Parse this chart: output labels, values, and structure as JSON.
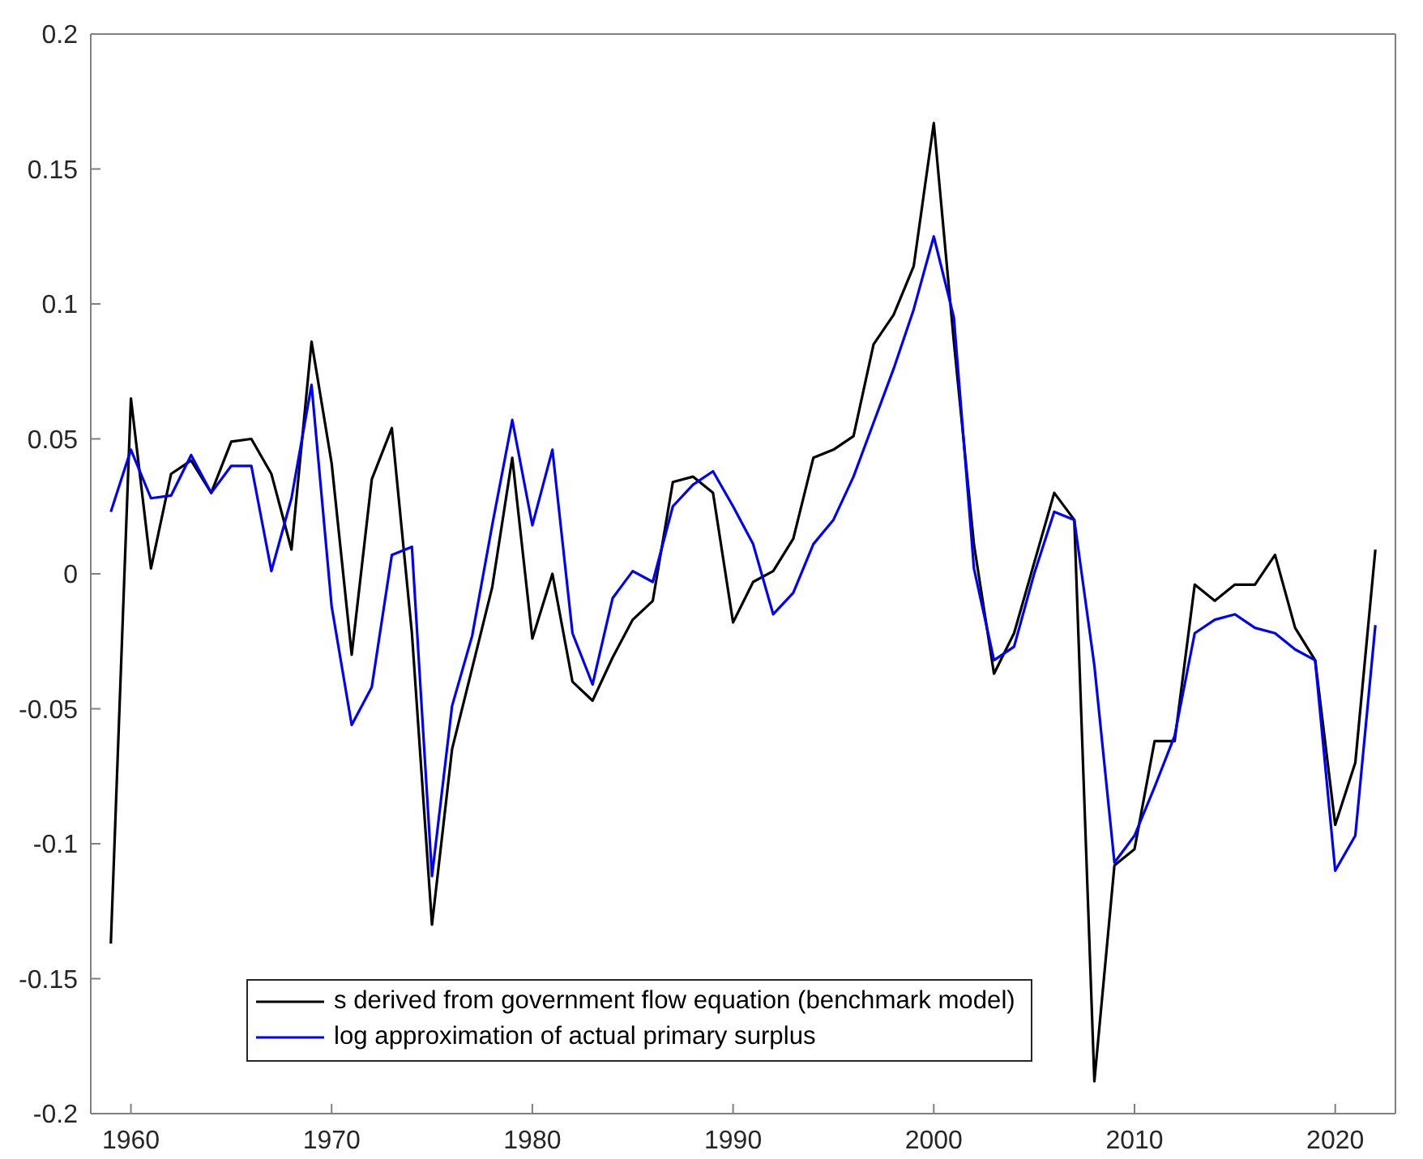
{
  "chart_data": {
    "type": "line",
    "x": [
      1959,
      1960,
      1961,
      1962,
      1963,
      1964,
      1965,
      1966,
      1967,
      1968,
      1969,
      1970,
      1971,
      1972,
      1973,
      1974,
      1975,
      1976,
      1977,
      1978,
      1979,
      1980,
      1981,
      1982,
      1983,
      1984,
      1985,
      1986,
      1987,
      1988,
      1989,
      1990,
      1991,
      1992,
      1993,
      1994,
      1995,
      1996,
      1997,
      1998,
      1999,
      2000,
      2001,
      2002,
      2003,
      2004,
      2005,
      2006,
      2007,
      2008,
      2009,
      2010,
      2011,
      2012,
      2013,
      2014,
      2015,
      2016,
      2017,
      2018,
      2019,
      2020,
      2021,
      2022
    ],
    "series": [
      {
        "name": "s derived from government flow equation (benchmark model)",
        "color": "#000000",
        "values": [
          -0.137,
          0.065,
          0.002,
          0.037,
          0.042,
          0.03,
          0.049,
          0.05,
          0.037,
          0.009,
          0.086,
          0.041,
          -0.03,
          0.035,
          0.054,
          -0.022,
          -0.13,
          -0.065,
          -0.035,
          -0.005,
          0.043,
          -0.024,
          0.0,
          -0.04,
          -0.047,
          -0.031,
          -0.017,
          -0.01,
          0.034,
          0.036,
          0.03,
          -0.018,
          -0.003,
          0.001,
          0.013,
          0.043,
          0.046,
          0.051,
          0.085,
          0.096,
          0.114,
          0.167,
          0.086,
          0.011,
          -0.037,
          -0.022,
          0.004,
          0.03,
          0.02,
          -0.188,
          -0.108,
          -0.102,
          -0.062,
          -0.062,
          -0.004,
          -0.01,
          -0.004,
          -0.004,
          0.007,
          -0.02,
          -0.032,
          -0.093,
          -0.07,
          0.009
        ]
      },
      {
        "name": "log approximation of actual primary surplus",
        "color": "#0000ff",
        "values": [
          0.023,
          0.046,
          0.028,
          0.029,
          0.044,
          0.03,
          0.04,
          0.04,
          0.001,
          0.028,
          0.07,
          -0.012,
          -0.056,
          -0.042,
          0.007,
          0.01,
          -0.112,
          -0.049,
          -0.023,
          0.018,
          0.057,
          0.018,
          0.046,
          -0.022,
          -0.041,
          -0.009,
          0.001,
          -0.003,
          0.025,
          0.033,
          0.038,
          0.025,
          0.011,
          -0.015,
          -0.007,
          0.011,
          0.02,
          0.036,
          0.056,
          0.076,
          0.098,
          0.125,
          0.095,
          0.002,
          -0.032,
          -0.027,
          0.0,
          0.023,
          0.02,
          -0.034,
          -0.107,
          -0.097,
          -0.079,
          -0.06,
          -0.022,
          -0.017,
          -0.015,
          -0.02,
          -0.022,
          -0.028,
          -0.032,
          -0.11,
          -0.097,
          -0.019
        ]
      }
    ],
    "xlim": [
      1958,
      2023
    ],
    "xticks": [
      1960,
      1970,
      1980,
      1990,
      2000,
      2010,
      2020
    ],
    "ylim": [
      -0.2,
      0.2
    ],
    "yticks": [
      -0.2,
      -0.15,
      -0.1,
      -0.05,
      0,
      0.05,
      0.1,
      0.15,
      0.2
    ],
    "legend": "bottom left",
    "line_style": "solid"
  }
}
